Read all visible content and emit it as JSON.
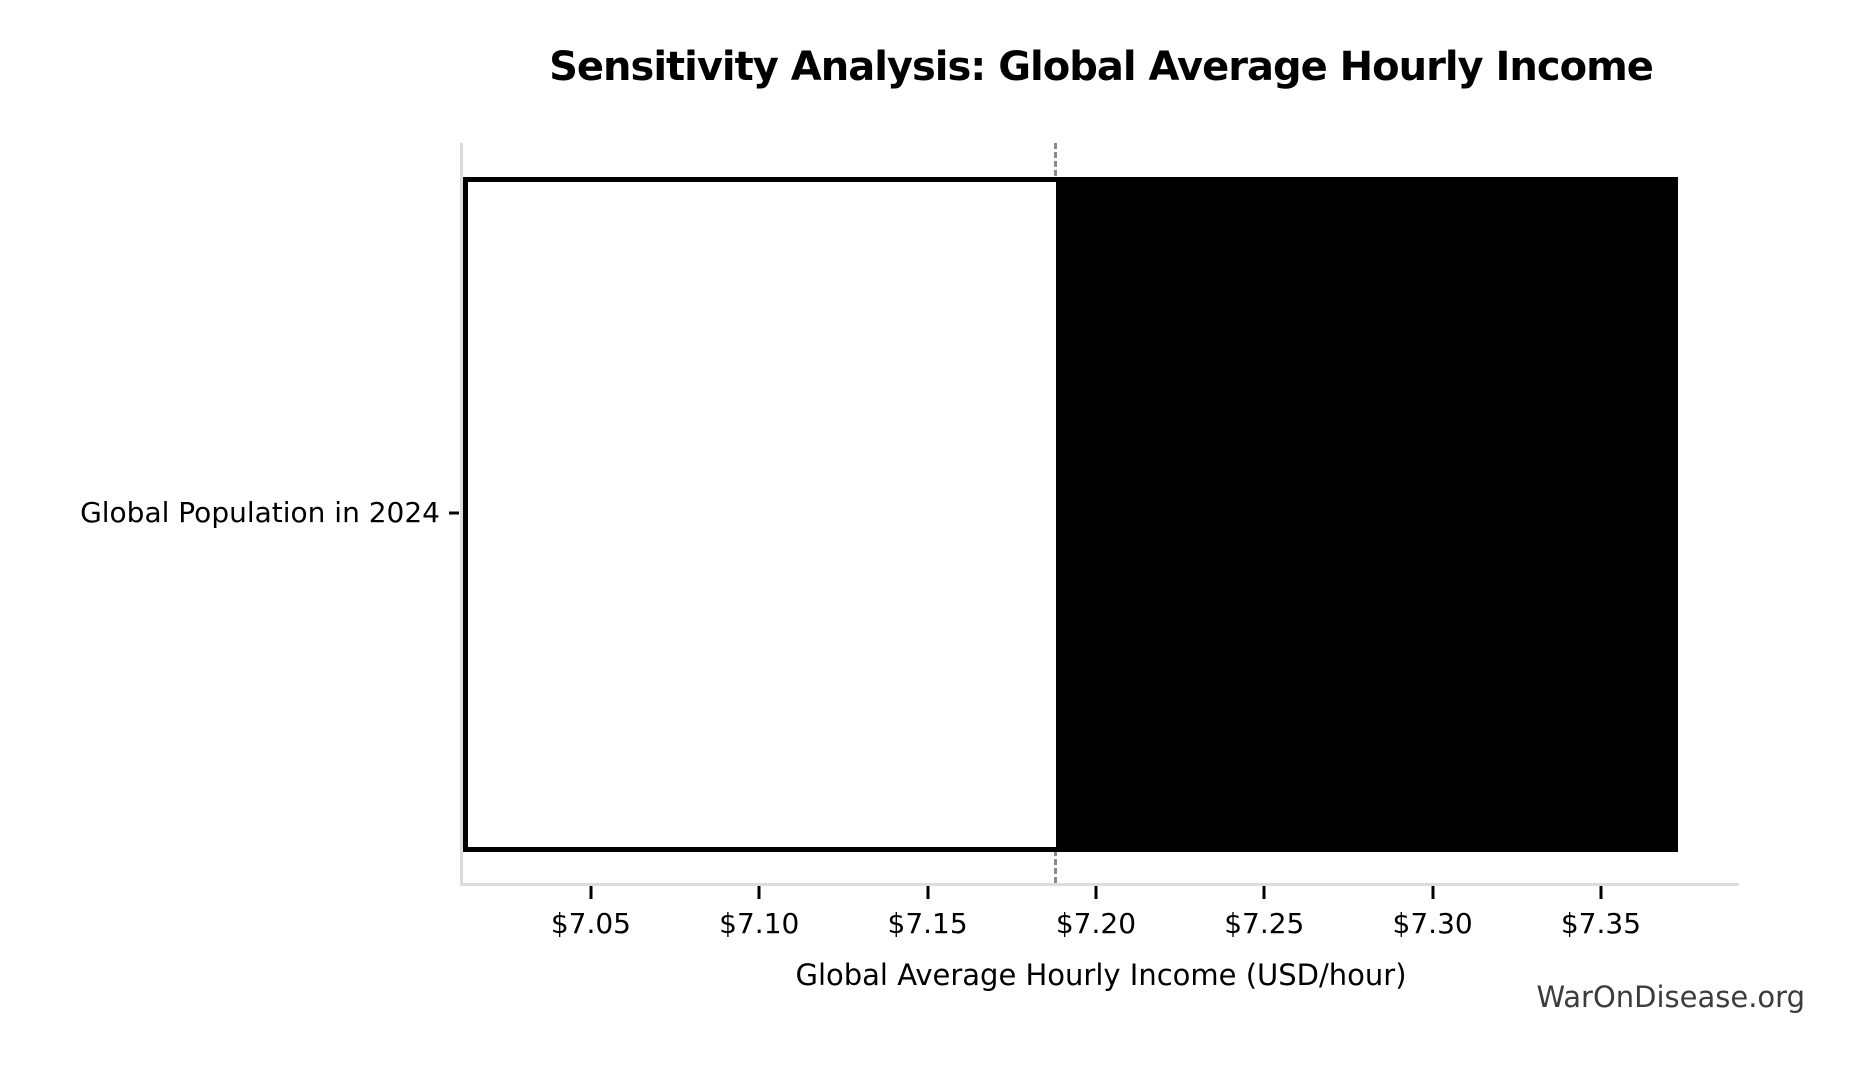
{
  "watermark": "WarOnDisease.org",
  "chart_data": {
    "type": "bar",
    "orientation": "horizontal",
    "title": "Sensitivity Analysis: Global Average Hourly Income",
    "xlabel": "Global Average Hourly Income (USD/hour)",
    "ylabel": "",
    "categories": [
      "Global Population in 2024"
    ],
    "xlim": [
      7.012,
      7.391
    ],
    "grid": false,
    "legend": false,
    "x_ticks": [
      {
        "value": 7.05,
        "label": "$7.05"
      },
      {
        "value": 7.1,
        "label": "$7.10"
      },
      {
        "value": 7.15,
        "label": "$7.15"
      },
      {
        "value": 7.2,
        "label": "$7.20"
      },
      {
        "value": 7.25,
        "label": "$7.25"
      },
      {
        "value": 7.3,
        "label": "$7.30"
      },
      {
        "value": 7.35,
        "label": "$7.35"
      }
    ],
    "bar": {
      "low": 7.012,
      "base": 7.188,
      "high": 7.373,
      "low_segment_color": "#ffffff",
      "high_segment_color": "#000000",
      "edge_color": "#000000"
    },
    "baseline": {
      "value": 7.188,
      "style": "dashed",
      "color": "#8a8a8a"
    }
  },
  "colors": {
    "background": "#ffffff",
    "spine": "#dcdcdc",
    "tick": "#000000",
    "text": "#000000",
    "watermark_text": "#3c3c3c"
  }
}
